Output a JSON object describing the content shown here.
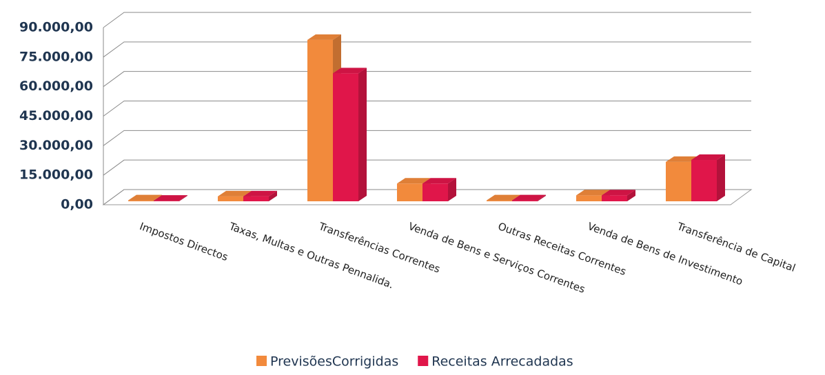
{
  "chart_data": {
    "type": "bar3d",
    "categories": [
      "Impostos Directos",
      "Taxas, Multas e Outras Pennalida.",
      "Transferências Correntes",
      "Venda de Bens e Serviços Correntes",
      "Outras Receitas Correntes",
      "Venda de Bens de Investimento",
      "Transferência de Capital"
    ],
    "series": [
      {
        "name": "PrevisõesCorrigidas",
        "color": "#f28a3c",
        "values": [
          500,
          2500,
          82000,
          9000,
          500,
          3000,
          20000
        ]
      },
      {
        "name": "Receitas Arrecadadas",
        "color": "#e0164a",
        "values": [
          300,
          2500,
          65000,
          9000,
          500,
          3000,
          21000
        ]
      }
    ],
    "ylim": [
      0,
      90000
    ],
    "yticks": [
      {
        "value": 0,
        "label": "0,00"
      },
      {
        "value": 15000,
        "label": "15.000,00"
      },
      {
        "value": 30000,
        "label": "30.000,00"
      },
      {
        "value": 45000,
        "label": "45.000,00"
      },
      {
        "value": 60000,
        "label": "60.000,00"
      },
      {
        "value": 75000,
        "label": "75.000,00"
      },
      {
        "value": 90000,
        "label": "90.000,00"
      }
    ],
    "grid": true,
    "legend": "bottom"
  }
}
